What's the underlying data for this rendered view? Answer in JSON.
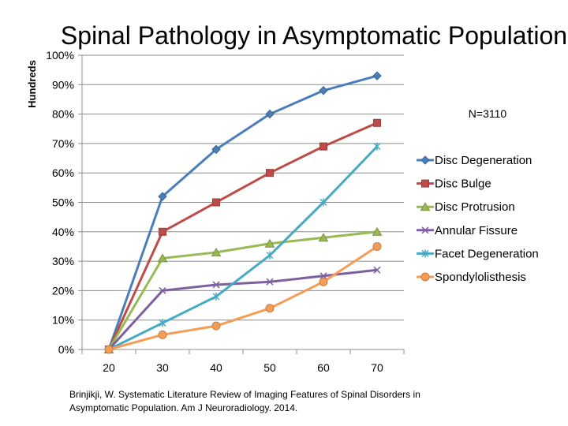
{
  "chart_data": {
    "type": "line",
    "title": "Spinal Pathology in Asymptomatic Population",
    "xlabel": "",
    "ylabel": "Hundreds",
    "categories": [
      "20",
      "30",
      "40",
      "50",
      "60",
      "70"
    ],
    "ylim": [
      0,
      100
    ],
    "yticks": [
      "0%",
      "10%",
      "20%",
      "30%",
      "40%",
      "50%",
      "60%",
      "70%",
      "80%",
      "90%",
      "100%"
    ],
    "grid": true,
    "legend_position": "right",
    "annotation": "N=3110",
    "series": [
      {
        "name": "Disc Degeneration",
        "color": "#4a7ebb",
        "marker": "diamond",
        "values": [
          0,
          52,
          68,
          80,
          88,
          93
        ]
      },
      {
        "name": "Disc Bulge",
        "color": "#be4b48",
        "marker": "square",
        "values": [
          0,
          40,
          50,
          60,
          69,
          77
        ]
      },
      {
        "name": "Disc Protrusion",
        "color": "#98b954",
        "marker": "triangle",
        "values": [
          0,
          31,
          33,
          36,
          38,
          40
        ]
      },
      {
        "name": "Annular Fissure",
        "color": "#7d60a0",
        "marker": "x",
        "values": [
          0,
          20,
          22,
          23,
          25,
          27
        ]
      },
      {
        "name": "Facet Degeneration",
        "color": "#46aac5",
        "marker": "asterisk",
        "values": [
          0,
          9,
          18,
          32,
          50,
          69
        ]
      },
      {
        "name": "Spondylolisthesis",
        "color": "#f59d56",
        "marker": "circle",
        "values": [
          0,
          5,
          8,
          14,
          23,
          35
        ]
      }
    ]
  },
  "citation": {
    "line1": "Brinjikji, W. Systematic Literature Review of Imaging Features of Spinal Disorders in",
    "line2": "Asymptomatic Population. Am J Neuroradiology. 2014."
  }
}
